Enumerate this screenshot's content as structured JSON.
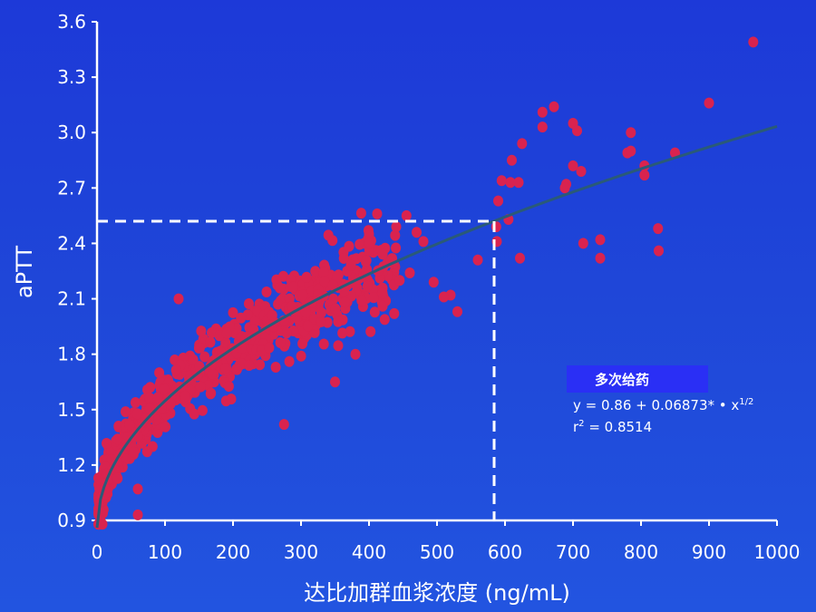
{
  "colors": {
    "background": "#1f45d8",
    "point": "#d9234f",
    "fit_line": "#2a5a78",
    "axis": "#ffffff",
    "legend_box": "#2a2ff5"
  },
  "legend": {
    "title": "多次给药",
    "equation_prefix": "y = 0.86 + 0.06873* • x",
    "equation_exponent": "1/2",
    "r2_prefix": "r",
    "r2_exponent": "2",
    "r2_value": " = 0.8514"
  },
  "chart_data": {
    "type": "scatter",
    "xlabel": "达比加群血浆浓度 (ng/mL)",
    "ylabel": "aPTT",
    "xlim": [
      0,
      1000
    ],
    "ylim": [
      0.9,
      3.6
    ],
    "xticks": [
      0,
      100,
      200,
      300,
      400,
      500,
      600,
      700,
      800,
      900,
      1000
    ],
    "yticks": [
      0.9,
      1.2,
      1.5,
      1.8,
      2.1,
      2.4,
      2.7,
      3.0,
      3.3,
      3.6
    ],
    "xtick_labels": [
      "0",
      "100",
      "200",
      "300",
      "400",
      "500",
      "600",
      "700",
      "800",
      "900",
      "1000"
    ],
    "ytick_labels": [
      "0.9",
      "1.2",
      "1.5",
      "1.8",
      "2.1",
      "2.4",
      "2.7",
      "3.0",
      "3.3",
      "3.6"
    ],
    "fit": {
      "intercept": 0.86,
      "coef": 0.06873,
      "form": "y = a + b*sqrt(x)",
      "x_range": [
        0,
        1000
      ]
    },
    "reference_lines": {
      "x": 584,
      "y": 2.52,
      "style": "dashed"
    },
    "outlier_points": [
      [
        965,
        3.49
      ],
      [
        900,
        3.16
      ],
      [
        672,
        3.14
      ],
      [
        655,
        3.11
      ],
      [
        655,
        3.03
      ],
      [
        700,
        3.05
      ],
      [
        706,
        3.01
      ],
      [
        625,
        2.94
      ],
      [
        785,
        3.0
      ],
      [
        780,
        2.89
      ],
      [
        785,
        2.9
      ],
      [
        850,
        2.89
      ],
      [
        805,
        2.82
      ],
      [
        805,
        2.77
      ],
      [
        700,
        2.82
      ],
      [
        712,
        2.79
      ],
      [
        690,
        2.72
      ],
      [
        688,
        2.7
      ],
      [
        610,
        2.85
      ],
      [
        608,
        2.73
      ],
      [
        620,
        2.73
      ],
      [
        595,
        2.74
      ],
      [
        590,
        2.63
      ],
      [
        605,
        2.53
      ],
      [
        587,
        2.49
      ],
      [
        588,
        2.41
      ],
      [
        560,
        2.31
      ],
      [
        622,
        2.32
      ],
      [
        715,
        2.4
      ],
      [
        740,
        2.42
      ],
      [
        740,
        2.32
      ],
      [
        825,
        2.48
      ],
      [
        826,
        2.36
      ],
      [
        530,
        2.03
      ],
      [
        520,
        2.12
      ],
      [
        510,
        2.11
      ],
      [
        495,
        2.19
      ],
      [
        480,
        2.41
      ],
      [
        470,
        2.46
      ],
      [
        455,
        2.55
      ],
      [
        440,
        2.49
      ],
      [
        412,
        2.56
      ],
      [
        400,
        2.45
      ],
      [
        400,
        2.4
      ],
      [
        445,
        2.2
      ],
      [
        420,
        2.13
      ],
      [
        437,
        2.02
      ],
      [
        420,
        2.06
      ],
      [
        460,
        2.24
      ],
      [
        275,
        1.42
      ],
      [
        350,
        1.65
      ],
      [
        380,
        1.8
      ],
      [
        60,
        0.93
      ],
      [
        60,
        1.07
      ],
      [
        120,
        2.1
      ],
      [
        5,
        0.9
      ],
      [
        8,
        0.88
      ]
    ],
    "dense_cloud": {
      "n": 700,
      "x_range": [
        2,
        440
      ],
      "noise_sd": 0.09,
      "follows": "fit"
    }
  }
}
